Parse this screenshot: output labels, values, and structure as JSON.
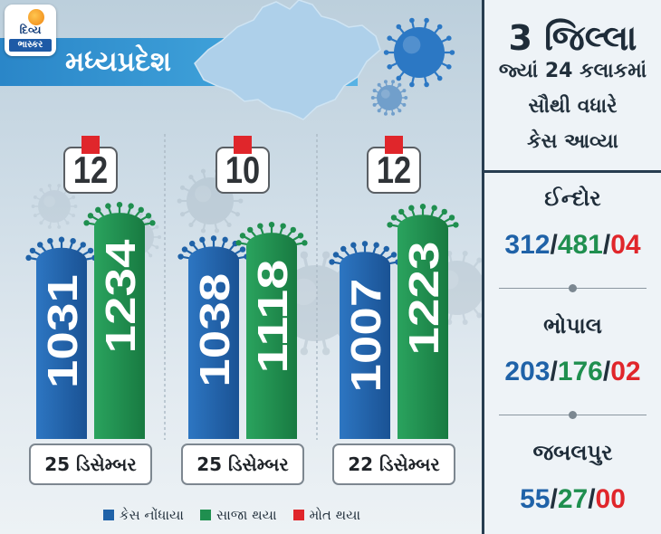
{
  "logo": {
    "line1": "દિવ્ય",
    "line2": "ભાસ્કર"
  },
  "banner": {
    "title": "મધ્યપ્રદેશ"
  },
  "colors": {
    "cases": "#1f62a8",
    "recovered": "#1f8f4f",
    "deaths": "#e0262b",
    "banner": "#3d9fd8",
    "panel_border": "#273d50"
  },
  "chart_data": {
    "type": "bar",
    "categories": [
      "25 ડિસેમ્બર",
      "25 ડિસેમ્બર",
      "22 ડિસેમ્બર"
    ],
    "series": [
      {
        "name": "કેસ નોંધાયા",
        "values": [
          1031,
          1038,
          1007
        ],
        "color": "#1f62a8"
      },
      {
        "name": "સાજા થયા",
        "values": [
          1234,
          1118,
          1223
        ],
        "color": "#1f8f4f"
      },
      {
        "name": "મોત થયા",
        "values": [
          12,
          10,
          12
        ],
        "color": "#e0262b"
      }
    ],
    "legend": "bottom",
    "grid": false
  },
  "side": {
    "heading": "3 જિલ્લા",
    "sub_lines": [
      "જ્યાં 24 કલાકમાં",
      "સૌથી વધારે",
      "કેસ આવ્યા"
    ],
    "separator": "/",
    "districts": [
      {
        "name": "ઈન્દોર",
        "cases": "312",
        "recovered": "481",
        "deaths": "04"
      },
      {
        "name": "ભોપાલ",
        "cases": "203",
        "recovered": "176",
        "deaths": "02"
      },
      {
        "name": "જબલપુર",
        "cases": "55",
        "recovered": "27",
        "deaths": "00"
      }
    ]
  }
}
